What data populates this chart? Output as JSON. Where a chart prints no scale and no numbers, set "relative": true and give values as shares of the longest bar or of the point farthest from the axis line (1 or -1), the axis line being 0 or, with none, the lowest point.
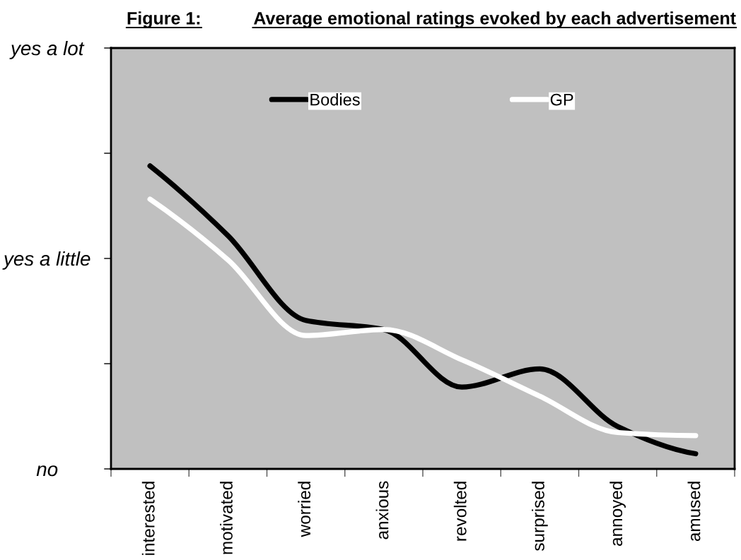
{
  "chart_data": {
    "type": "line",
    "title": "Figure 1:",
    "subtitle": "Average emotional ratings evoked by each advertisement",
    "categories": [
      "interested",
      "motivated",
      "worried",
      "anxious",
      "revolted",
      "surprised",
      "annoyed",
      "amused"
    ],
    "y_categories": [
      "yes a lot",
      null,
      "yes a little",
      null,
      "no"
    ],
    "relative": true,
    "series": [
      {
        "name": "Bodies",
        "color": "#000000",
        "values": [
          1.0,
          0.77,
          0.49,
          0.46,
          0.27,
          0.33,
          0.14,
          0.05
        ]
      },
      {
        "name": "GP",
        "color": "#ffffff",
        "values": [
          0.89,
          0.69,
          0.44,
          0.46,
          0.36,
          0.24,
          0.12,
          0.11
        ]
      }
    ],
    "legend": "top",
    "marker": "none",
    "line_style": "solid"
  }
}
